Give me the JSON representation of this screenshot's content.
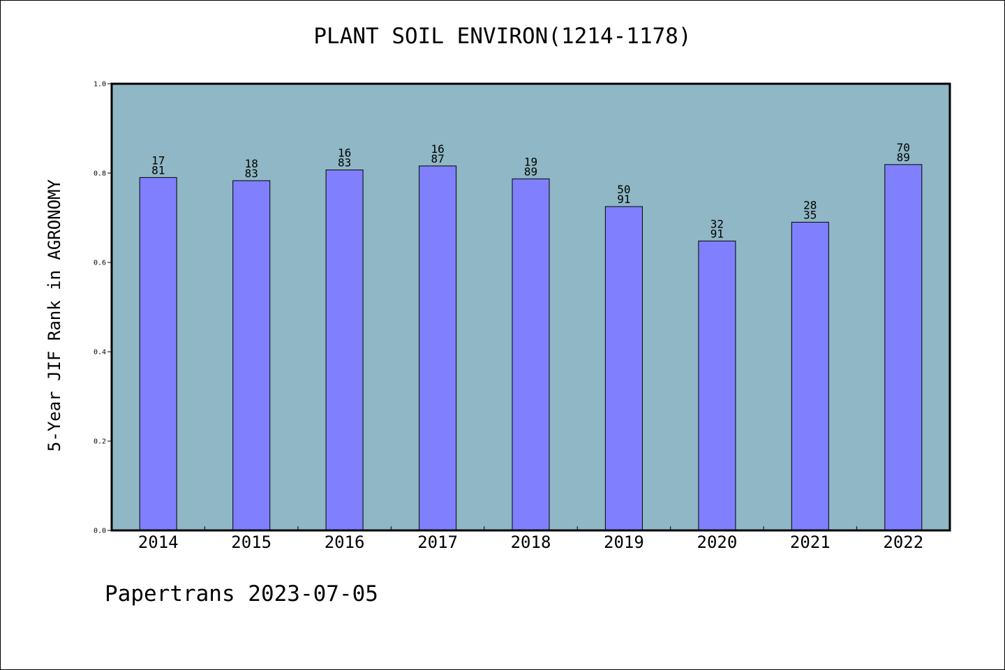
{
  "chart_data": {
    "type": "bar",
    "title": "PLANT SOIL ENVIRON(1214-1178)",
    "xlabel": "",
    "ylabel": "5-Year JIF Rank in AGRONOMY",
    "categories": [
      "2014",
      "2015",
      "2016",
      "2017",
      "2018",
      "2019",
      "2020",
      "2021",
      "2022"
    ],
    "values": [
      0.79,
      0.783,
      0.807,
      0.816,
      0.787,
      0.725,
      0.648,
      0.69,
      0.819
    ],
    "rank_labels": [
      {
        "top": "17",
        "bottom": "81"
      },
      {
        "top": "18",
        "bottom": "83"
      },
      {
        "top": "16",
        "bottom": "83"
      },
      {
        "top": "16",
        "bottom": "87"
      },
      {
        "top": "19",
        "bottom": "89"
      },
      {
        "top": "50",
        "bottom": "91"
      },
      {
        "top": "32",
        "bottom": "91"
      },
      {
        "top": "28",
        "bottom": "35"
      },
      {
        "top": "70",
        "bottom": "89"
      }
    ],
    "ylim": [
      0.0,
      1.0
    ],
    "yticks": [
      "0.0",
      "0.2",
      "0.4",
      "0.6",
      "0.8",
      "1.0"
    ],
    "grid": false,
    "legend": "none",
    "colors": {
      "plot_background": "#8fb7c5",
      "bar_fill": "#8080ff",
      "bar_stroke": "#000000"
    }
  },
  "footer": {
    "note": "Papertrans 2023-07-05"
  }
}
